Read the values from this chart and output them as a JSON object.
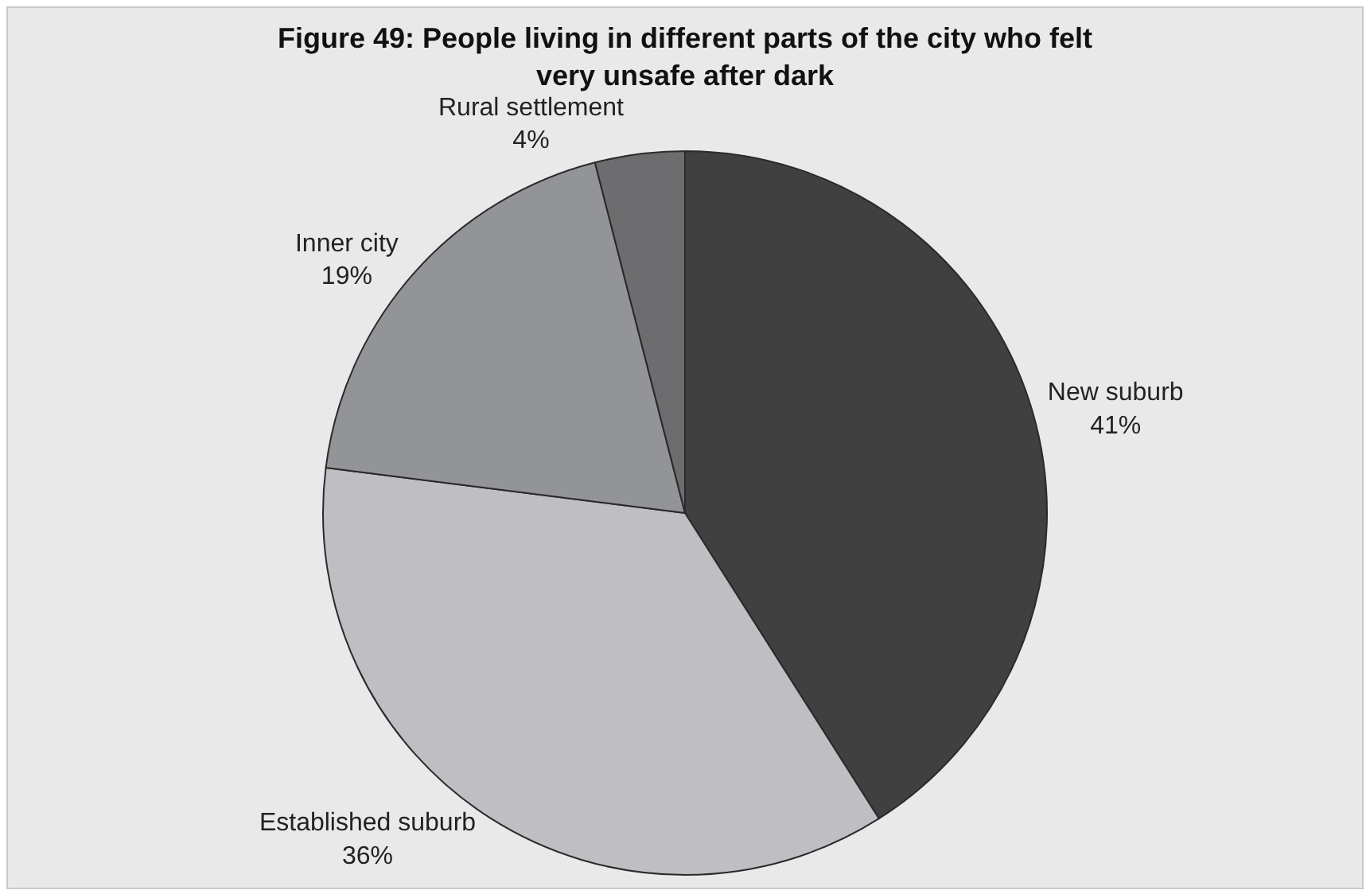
{
  "chart_data": {
    "type": "pie",
    "title": "Figure 49: People living in different parts of the city who felt very unsafe after dark",
    "categories": [
      "New suburb",
      "Established suburb",
      "Inner city",
      "Rural settlement"
    ],
    "values": [
      41,
      36,
      19,
      4
    ],
    "value_labels": [
      "41%",
      "36%",
      "19%",
      "4%"
    ],
    "colors": [
      "#404040",
      "#bfbfc3",
      "#939497",
      "#6d6d6f"
    ],
    "legend": false
  }
}
